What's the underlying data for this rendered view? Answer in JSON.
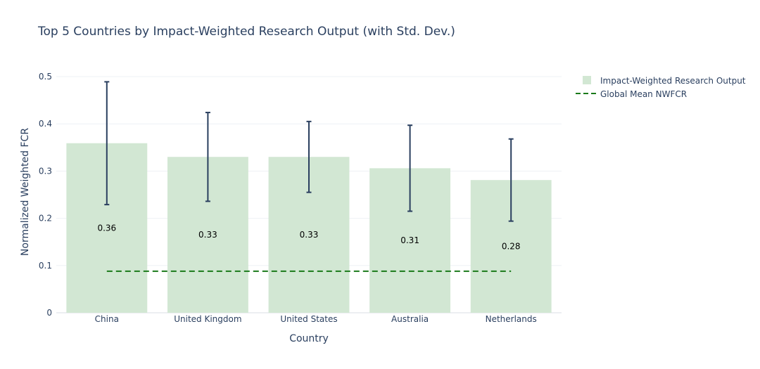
{
  "chart_data": {
    "type": "bar",
    "title": "Top 5 Countries by Impact-Weighted Research Output (with Std. Dev.)",
    "xlabel": "Country",
    "ylabel": "Normalized Weighted FCR",
    "categories": [
      "China",
      "United Kingdom",
      "United States",
      "Australia",
      "Netherlands"
    ],
    "series": [
      {
        "name": "Impact-Weighted Research Output",
        "values": [
          0.359,
          0.33,
          0.33,
          0.306,
          0.281
        ],
        "error": [
          0.13,
          0.094,
          0.075,
          0.091,
          0.087
        ],
        "labels": [
          "0.36",
          "0.33",
          "0.33",
          "0.31",
          "0.28"
        ],
        "color": "#d2e7d3"
      }
    ],
    "reference_line": {
      "name": "Global Mean NWFCR",
      "value": 0.088,
      "color": "#1a7a1a",
      "style": "dash"
    },
    "error_bar_color": "#2a3f5f",
    "ylim": [
      0,
      0.5
    ],
    "yticks": [
      0,
      0.1,
      0.2,
      0.3,
      0.4,
      0.5
    ],
    "ytick_labels": [
      "0",
      "0.1",
      "0.2",
      "0.3",
      "0.4",
      "0.5"
    ],
    "grid": true,
    "legend_position": "top-right"
  }
}
